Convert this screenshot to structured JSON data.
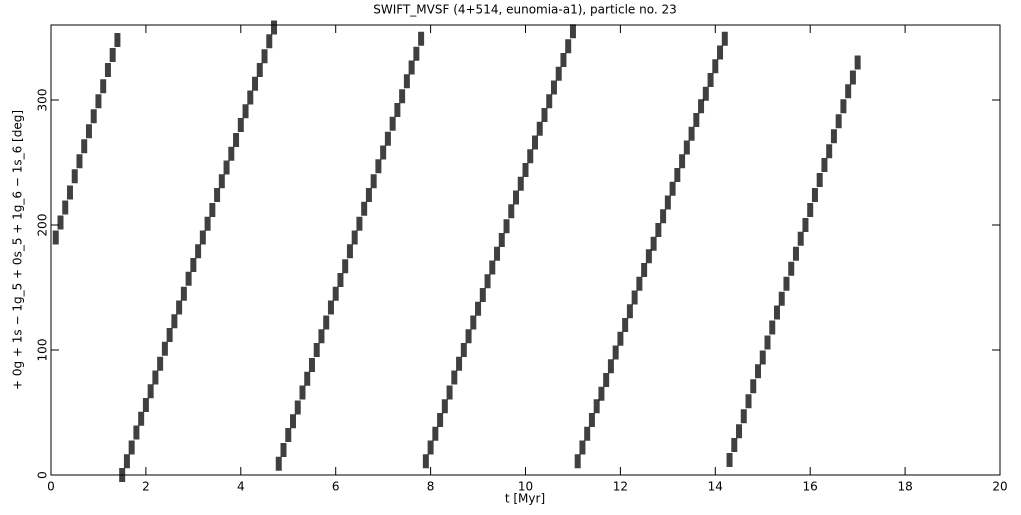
{
  "chart_data": {
    "type": "scatter",
    "title": "SWIFT_MVSF (4+514, eunomia-a1), particle no. 23",
    "xlabel": "t [Myr]",
    "ylabel": "+ 0g + 1s − 1g_5 + 0s_5 + 1g_6 − 1s_6 [deg]",
    "xlim": [
      0,
      20
    ],
    "ylim": [
      0,
      360
    ],
    "xticks": [
      0,
      2,
      4,
      6,
      8,
      10,
      12,
      14,
      16,
      18,
      20
    ],
    "yticks": [
      0,
      100,
      200,
      300
    ],
    "color": "#000000",
    "x": [
      0.1,
      0.2,
      0.3,
      0.4,
      0.5,
      0.6,
      0.7,
      0.8,
      0.9,
      1.0,
      1.1,
      1.2,
      1.3,
      1.4,
      1.5,
      1.6,
      1.7,
      1.8,
      1.9,
      2.0,
      2.1,
      2.2,
      2.3,
      2.4,
      2.5,
      2.6,
      2.7,
      2.8,
      2.9,
      3.0,
      3.1,
      3.2,
      3.3,
      3.4,
      3.5,
      3.6,
      3.7,
      3.8,
      3.9,
      4.0,
      4.1,
      4.2,
      4.3,
      4.4,
      4.5,
      4.6,
      4.7,
      4.8,
      4.9,
      5.0,
      5.1,
      5.2,
      5.3,
      5.4,
      5.5,
      5.6,
      5.7,
      5.8,
      5.9,
      6.0,
      6.1,
      6.2,
      6.3,
      6.4,
      6.5,
      6.6,
      6.7,
      6.8,
      6.9,
      7.0,
      7.1,
      7.2,
      7.3,
      7.4,
      7.5,
      7.6,
      7.7,
      7.8,
      7.9,
      8.0,
      8.1,
      8.2,
      8.3,
      8.4,
      8.5,
      8.6,
      8.7,
      8.8,
      8.9,
      9.0,
      9.1,
      9.2,
      9.3,
      9.4,
      9.5,
      9.6,
      9.7,
      9.8,
      9.9,
      10.0,
      10.1,
      10.2,
      10.3,
      10.4,
      10.5,
      10.6,
      10.7,
      10.8,
      10.9,
      11.0,
      11.1,
      11.2,
      11.3,
      11.4,
      11.5,
      11.6,
      11.7,
      11.8,
      11.9,
      12.0,
      12.1,
      12.2,
      12.3,
      12.4,
      12.5,
      12.6,
      12.7,
      12.8,
      12.9,
      13.0,
      13.1,
      13.2,
      13.3,
      13.4,
      13.5,
      13.6,
      13.7,
      13.8,
      13.9,
      14.0,
      14.1,
      14.2,
      14.3,
      14.4,
      14.5,
      14.6,
      14.7,
      14.8,
      14.9,
      15.0,
      15.1,
      15.2,
      15.3,
      15.4,
      15.5,
      15.6,
      15.7,
      15.8,
      15.9,
      16.0,
      16.1,
      16.2,
      16.3,
      16.4,
      16.5,
      16.6,
      16.7,
      16.8,
      16.9,
      17.0
    ],
    "values": [
      190,
      202,
      214,
      226,
      239,
      251,
      263,
      275,
      287,
      299,
      311,
      324,
      336,
      348,
      0,
      11,
      22,
      34,
      45,
      56,
      67,
      78,
      89,
      101,
      112,
      123,
      134,
      145,
      157,
      168,
      179,
      190,
      201,
      212,
      224,
      235,
      246,
      257,
      268,
      280,
      291,
      302,
      313,
      324,
      335,
      347,
      358,
      9,
      20,
      32,
      43,
      54,
      66,
      77,
      88,
      100,
      111,
      122,
      134,
      145,
      156,
      167,
      179,
      190,
      201,
      213,
      224,
      235,
      247,
      258,
      269,
      281,
      292,
      303,
      315,
      326,
      337,
      349,
      11,
      22,
      33,
      44,
      55,
      66,
      78,
      89,
      100,
      111,
      122,
      133,
      144,
      155,
      166,
      177,
      188,
      199,
      211,
      222,
      233,
      244,
      255,
      266,
      277,
      288,
      299,
      310,
      321,
      332,
      343,
      355,
      11,
      22,
      33,
      44,
      55,
      65,
      76,
      87,
      98,
      109,
      120,
      131,
      142,
      153,
      164,
      175,
      185,
      196,
      207,
      218,
      229,
      240,
      251,
      262,
      273,
      284,
      295,
      305,
      316,
      327,
      338,
      349,
      12,
      24,
      35,
      47,
      59,
      71,
      83,
      94,
      106,
      118,
      130,
      141,
      153,
      165,
      177,
      189,
      200,
      212,
      224,
      236,
      248,
      259,
      271,
      283,
      295,
      307,
      318,
      330
    ]
  }
}
